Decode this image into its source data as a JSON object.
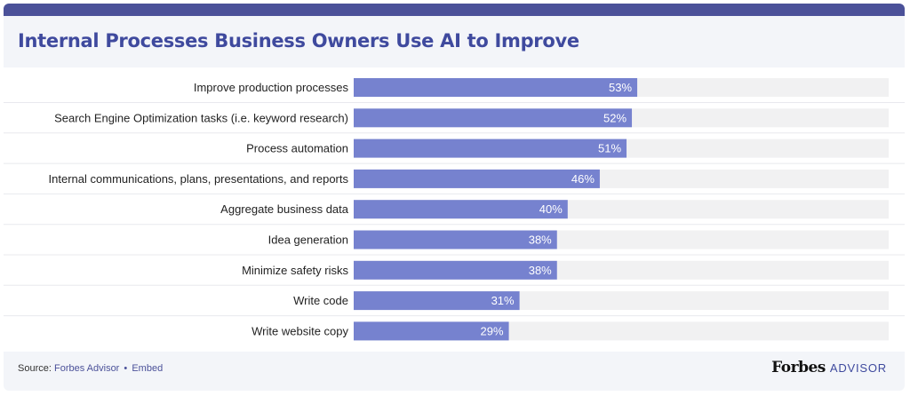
{
  "title": "Internal Processes Business Owners Use AI to Improve",
  "footer": {
    "source_prefix": "Source:",
    "source_name": "Forbes Advisor",
    "separator": "•",
    "embed_label": "Embed"
  },
  "brand": {
    "name": "Forbes",
    "suffix": "ADVISOR"
  },
  "colors": {
    "bar": "#7682cf",
    "track": "#f1f1f2",
    "title": "#3f4a9e",
    "card": "#f3f5f9",
    "topbar": "#4b5199"
  },
  "chart_data": {
    "type": "bar",
    "orientation": "horizontal",
    "categories": [
      "Improve production processes",
      "Search Engine Optimization tasks (i.e. keyword research)",
      "Process automation",
      "Internal communications, plans, presentations, and reports",
      "Aggregate business data",
      "Idea generation",
      "Minimize safety risks",
      "Write code",
      "Write website copy"
    ],
    "values": [
      53,
      52,
      51,
      46,
      40,
      38,
      38,
      31,
      29
    ],
    "value_labels": [
      "53%",
      "52%",
      "51%",
      "46%",
      "40%",
      "38%",
      "38%",
      "31%",
      "29%"
    ],
    "xlim": [
      0,
      100
    ],
    "unit": "%",
    "grid": false,
    "legend": "none"
  }
}
